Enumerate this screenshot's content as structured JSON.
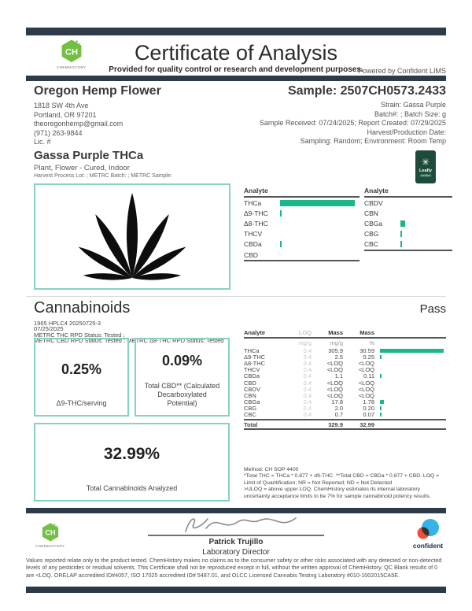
{
  "header": {
    "logo": {
      "initials": "CH",
      "name": "CHEMHISTORY"
    },
    "title": "Certificate of Analysis",
    "subtitle": "Provided for quality control or research and development purposes.",
    "powered_by": "Powered by Confident LIMS"
  },
  "client": {
    "name": "Oregon Hemp Flower",
    "address1": "1818 SW 4th Ave",
    "address2": "Portland, OR 97201",
    "email": "theoregonhemp@gmail.com",
    "phone": "(971) 263-9844",
    "license": "Lic. #"
  },
  "sample": {
    "id": "Sample: 2507CH0573.2433",
    "strain": "Strain: Gassa Purple",
    "batch": "Batch#: ; Batch Size:  g",
    "received": "Sample Received: 07/24/2025; Report Created: 07/29/2025",
    "harvest": "Harvest/Production Date:",
    "sampling": "Sampling: Random; Environment: Room Temp"
  },
  "product": {
    "name": "Gassa Purple THCa",
    "type": "Plant, Flower - Cured, Indoor",
    "lots": "Harvest Process Lot: ; METRC Batch: ; METRC Sample:",
    "leafly": {
      "starburst": "✳",
      "brand": "Leafly",
      "badge": "certified"
    }
  },
  "chart_data": {
    "type": "bar",
    "orientation": "horizontal",
    "title": "Analyte",
    "xlim": [
      0,
      30.59
    ],
    "unit": "% mass",
    "bar_color": "#1ab68c",
    "columns": [
      {
        "header": "Analyte",
        "categories": [
          "THCa",
          "Δ9-THC",
          "Δ8-THC",
          "THCV",
          "CBDa",
          "CBD"
        ],
        "values": [
          30.59,
          0.25,
          0,
          0,
          0.11,
          0
        ]
      },
      {
        "header": "Analyte",
        "categories": [
          "CBDV",
          "CBN",
          "CBGa",
          "CBG",
          "CBC"
        ],
        "values": [
          0,
          0,
          1.78,
          0.2,
          0.07
        ]
      }
    ]
  },
  "cannabinoids": {
    "title": "Cannabinoids",
    "status": "Pass",
    "method_id": "1965 HPLC4 20250725-3",
    "date": "07/25/2025",
    "metrc_line1": "METRC THC RPD Status: Tested ;",
    "metrc_line2": "METRC CBD RPD Status: Tested ; METRC Δ8-THC RPD Status: Tested",
    "summary_boxes": [
      {
        "value": "0.25%",
        "label": "Δ9-THC/serving"
      },
      {
        "value": "0.09%",
        "label": "Total CBD** (Calculated Decarboxylated Potential)"
      },
      {
        "value": "32.99%",
        "label": "Total Cannabinoids Analyzed"
      }
    ],
    "table": {
      "headers": [
        "Analyte",
        "LOQ",
        "Mass",
        "Mass"
      ],
      "units": [
        "",
        "mg/g",
        "mg/g",
        "%"
      ],
      "rows": [
        {
          "analyte": "THCa",
          "loq": "0.4",
          "mass_mg": "305.9",
          "mass_pct": "30.59",
          "bar": 30.59
        },
        {
          "analyte": "Δ9-THC",
          "loq": "0.4",
          "mass_mg": "2.5",
          "mass_pct": "0.25",
          "bar": 0.25
        },
        {
          "analyte": "Δ8-THC",
          "loq": "0.4",
          "mass_mg": "<LOQ",
          "mass_pct": "<LOQ",
          "bar": 0
        },
        {
          "analyte": "THCV",
          "loq": "0.4",
          "mass_mg": "<LOQ",
          "mass_pct": "<LOQ",
          "bar": 0
        },
        {
          "analyte": "CBDa",
          "loq": "0.4",
          "mass_mg": "1.1",
          "mass_pct": "0.11",
          "bar": 0.11
        },
        {
          "analyte": "CBD",
          "loq": "0.4",
          "mass_mg": "<LOQ",
          "mass_pct": "<LOQ",
          "bar": 0
        },
        {
          "analyte": "CBDV",
          "loq": "0.4",
          "mass_mg": "<LOQ",
          "mass_pct": "<LOQ",
          "bar": 0
        },
        {
          "analyte": "CBN",
          "loq": "0.4",
          "mass_mg": "<LOQ",
          "mass_pct": "<LOQ",
          "bar": 0
        },
        {
          "analyte": "CBGa",
          "loq": "0.4",
          "mass_mg": "17.8",
          "mass_pct": "1.78",
          "bar": 1.78
        },
        {
          "analyte": "CBG",
          "loq": "0.4",
          "mass_mg": "2.0",
          "mass_pct": "0.20",
          "bar": 0.2
        },
        {
          "analyte": "CBC",
          "loq": "0.4",
          "mass_mg": "0.7",
          "mass_pct": "0.07",
          "bar": 0.07
        }
      ],
      "total": {
        "analyte": "Total",
        "mass_mg": "329.9",
        "mass_pct": "32.99"
      }
    },
    "method_notes": [
      "Method: CH SOP 4400",
      "*Total THC = THCa * 0.877 + d9-THC. **Total CBD = CBDa * 0.877 + CBD. LOQ = Limit of Quantification; NR = Not Reported; ND = Not Detected",
      ">ULOQ = above upper LOQ. ChemHistory estimates its internal laboratory uncertainty acceptance limits to be 7% for sample cannabinoid potency results."
    ]
  },
  "signature": {
    "name": "Patrick Trujillo",
    "title": "Laboratory Director"
  },
  "footer": {
    "confident_label": "confident",
    "disclaimer": "Values reported relate only to the product tested. ChemHistory makes no claims as to the consumer safety or other risks associated with any detected or non-detected levels of any pesticides or residual solvents. This Certificate shall not be reproduced except in full, without the written approval of ChemHistory. QC Blank results of 0 are <LOQ.  ORELAP accredited ID#4057, ISO 17025 accredited ID# 5487.01, and OLCC Licensed Cannabis Testing Laboratory #010-1002015CA5E."
  },
  "colors": {
    "accent_teal": "#1ab68c",
    "box_border_teal": "#85d2c3",
    "navy": "#2d3a48",
    "chemhistory_green": "#72bf44",
    "leafly_green": "#1f4c3a",
    "confident_blue": "#35b2e6",
    "confident_orange": "#f04e37"
  }
}
